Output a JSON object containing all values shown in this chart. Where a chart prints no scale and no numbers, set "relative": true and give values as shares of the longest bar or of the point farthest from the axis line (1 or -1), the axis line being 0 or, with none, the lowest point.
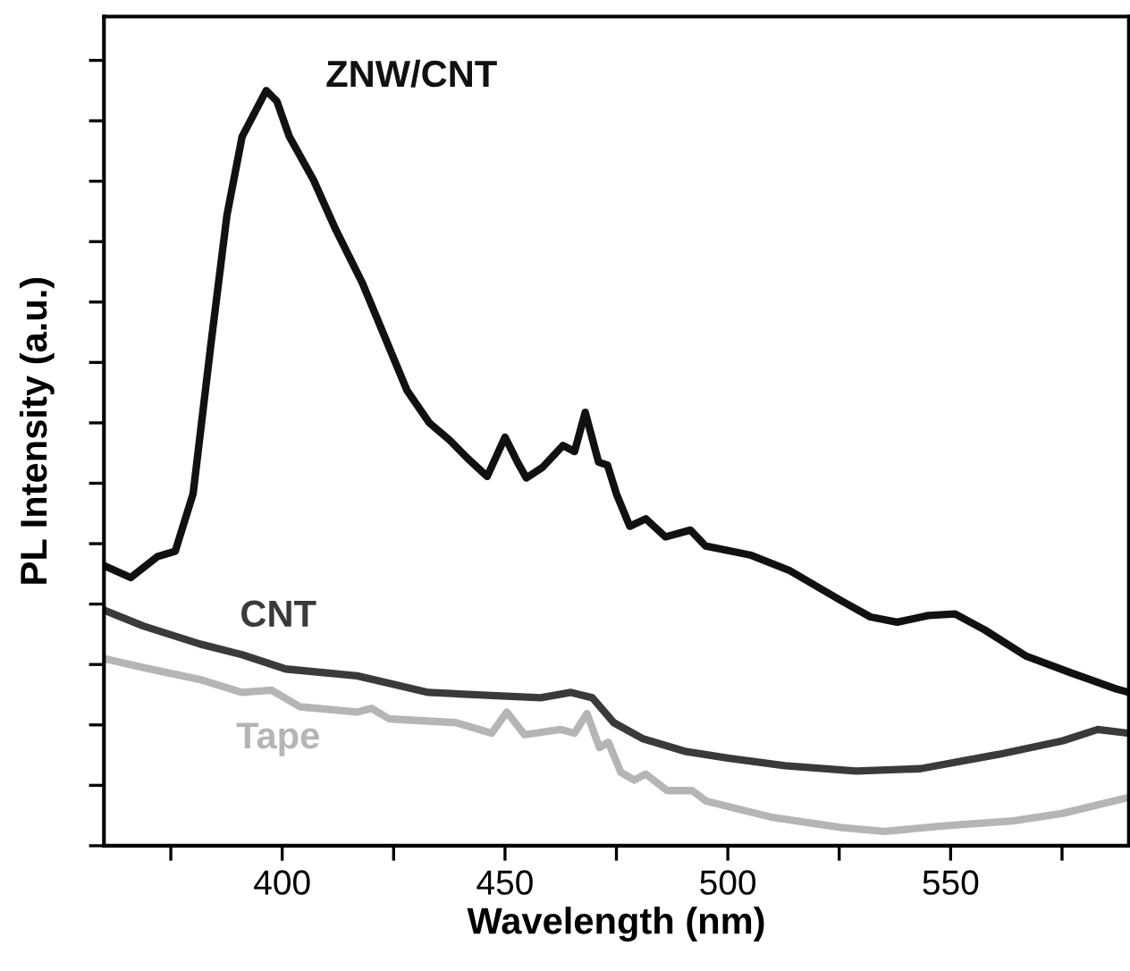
{
  "chart_data": {
    "type": "line",
    "relative": true,
    "xlabel": "Wavelength (nm)",
    "ylabel": "PL Intensity (a.u.)",
    "tick_labels": "x",
    "grid": false,
    "legend": false,
    "marker": "none",
    "line_style": "solid",
    "xlim": [
      360,
      590
    ],
    "xticks": [
      {
        "value": 375,
        "label": null
      },
      400,
      {
        "value": 425,
        "label": null
      },
      450,
      {
        "value": 475,
        "label": null
      },
      500,
      {
        "value": 525,
        "label": null
      },
      550,
      {
        "value": 575,
        "label": null
      }
    ],
    "series": [
      {
        "name": "ZNW/CNT",
        "color": "#111111",
        "x": [
          360,
          366,
          372,
          376,
          380,
          384,
          387.6,
          391,
          396.4,
          398.8,
          401.6,
          407,
          412,
          418,
          423,
          428,
          433,
          437.6,
          441.6,
          446,
          450,
          452.8,
          454.8,
          458.4,
          463,
          465.6,
          468,
          471,
          473,
          475,
          478,
          481.6,
          486,
          491.6,
          495,
          505,
          514,
          525.6,
          532,
          538,
          545,
          551,
          557.6,
          567,
          577,
          587,
          590
        ],
        "values": [
          0.371,
          0.355,
          0.383,
          0.39,
          0.466,
          0.664,
          0.835,
          0.939,
          1.0,
          0.986,
          0.939,
          0.882,
          0.816,
          0.745,
          0.674,
          0.603,
          0.56,
          0.537,
          0.513,
          0.489,
          0.541,
          0.508,
          0.487,
          0.501,
          0.53,
          0.522,
          0.574,
          0.508,
          0.504,
          0.466,
          0.423,
          0.433,
          0.409,
          0.418,
          0.397,
          0.385,
          0.364,
          0.324,
          0.303,
          0.296,
          0.305,
          0.307,
          0.286,
          0.251,
          0.229,
          0.208,
          0.203
        ]
      },
      {
        "name": "CNT",
        "color": "#3a3a3a",
        "x": [
          360,
          368.8,
          381.6,
          391,
          400.8,
          416.8,
          432.8,
          447,
          458,
          464.8,
          469.6,
          474.4,
          480.8,
          490.4,
          500,
          512.8,
          528.8,
          543.2,
          560.8,
          575.2,
          583,
          590
        ],
        "values": [
          0.312,
          0.291,
          0.267,
          0.253,
          0.234,
          0.225,
          0.203,
          0.199,
          0.196,
          0.203,
          0.196,
          0.163,
          0.142,
          0.125,
          0.116,
          0.106,
          0.099,
          0.102,
          0.121,
          0.139,
          0.154,
          0.149
        ]
      },
      {
        "name": "Tape",
        "color": "#b5b5b5",
        "x": [
          360,
          368.8,
          381.6,
          391,
          397.6,
          404,
          416.8,
          420,
          424,
          439,
          447,
          450.4,
          454.4,
          462.4,
          465.6,
          468.4,
          471.2,
          473.2,
          476,
          479,
          481.6,
          486.4,
          492,
          495.2,
          509.6,
          525.6,
          535.2,
          548,
          564,
          575.2,
          590
        ],
        "values": [
          0.248,
          0.236,
          0.22,
          0.203,
          0.206,
          0.184,
          0.177,
          0.182,
          0.168,
          0.163,
          0.149,
          0.177,
          0.147,
          0.154,
          0.149,
          0.175,
          0.13,
          0.137,
          0.097,
          0.087,
          0.095,
          0.073,
          0.073,
          0.059,
          0.038,
          0.024,
          0.019,
          0.026,
          0.033,
          0.043,
          0.064
        ]
      }
    ]
  }
}
